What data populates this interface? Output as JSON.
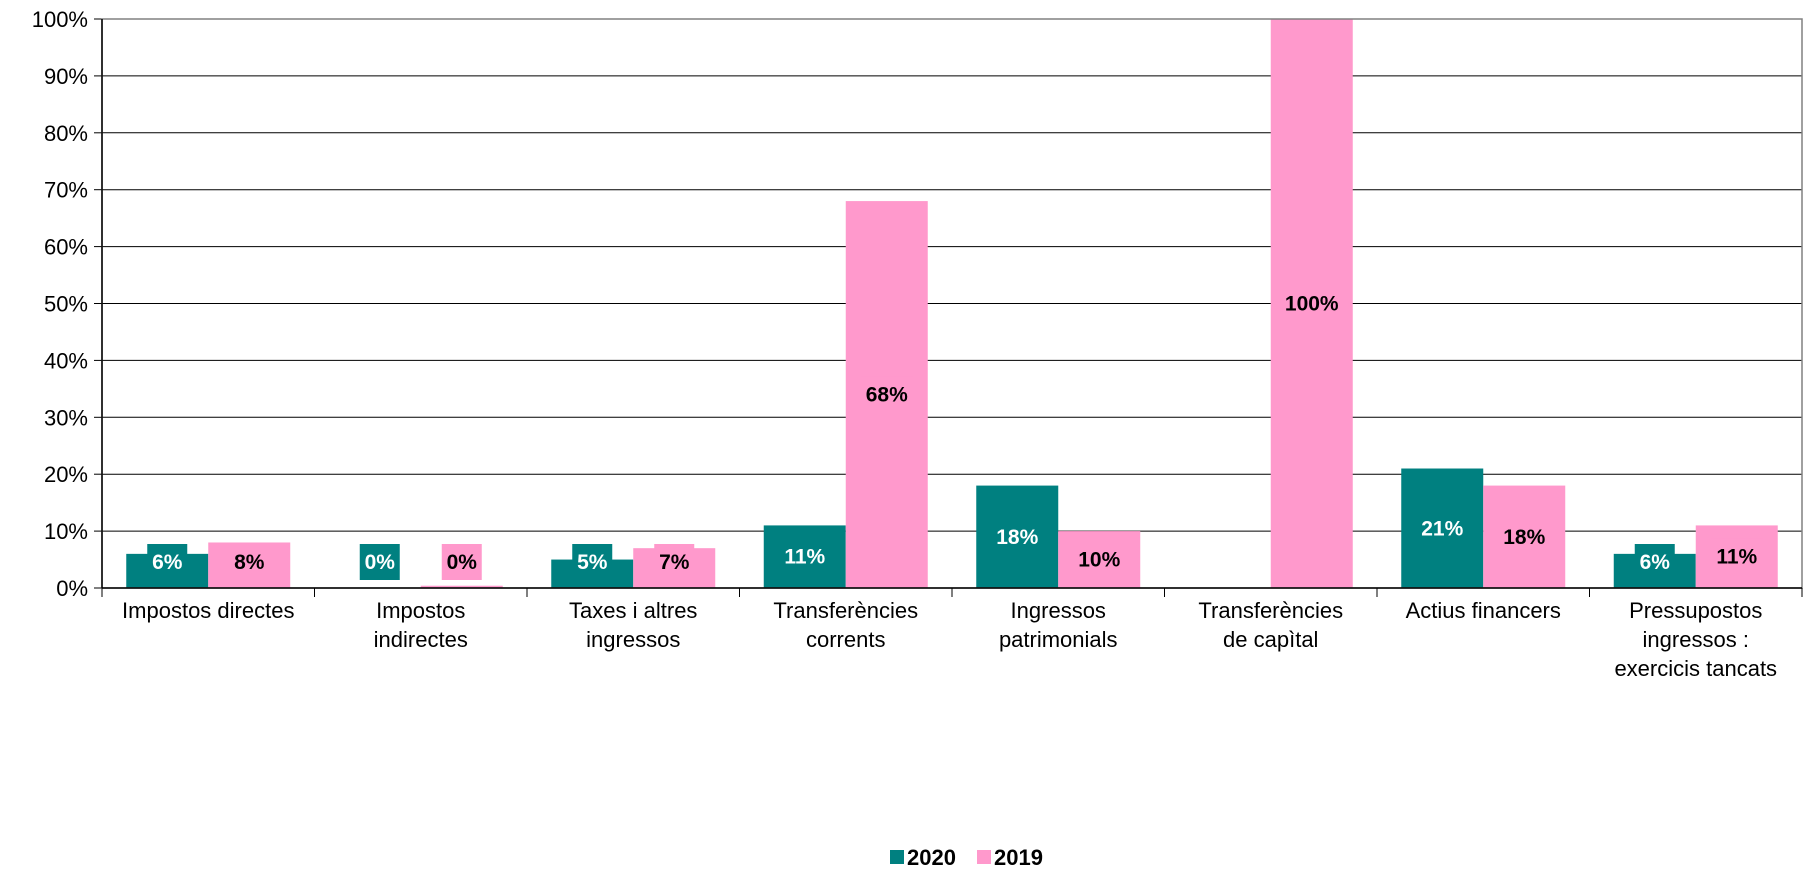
{
  "chart_data": {
    "type": "bar",
    "categories": [
      [
        "Impostos directes"
      ],
      [
        "Impostos",
        "indirectes"
      ],
      [
        "Taxes i altres",
        "ingressos"
      ],
      [
        "Transferències",
        "corrents"
      ],
      [
        "Ingressos",
        "patrimonials"
      ],
      [
        "Transferències",
        "de capìtal"
      ],
      [
        "Actius financers"
      ],
      [
        "Pressupostos",
        "ingressos :",
        "exercicis tancats"
      ]
    ],
    "series": [
      {
        "name": "2020",
        "color": "#008080",
        "values": [
          6,
          0,
          5,
          11,
          18,
          0,
          21,
          6
        ],
        "labels": [
          "6%",
          "0%",
          "5%",
          "11%",
          "18%",
          "",
          "21%",
          "6%"
        ],
        "label_color": "#ffffff"
      },
      {
        "name": "2019",
        "color": "#ff99cc",
        "values": [
          8,
          0.4,
          7,
          68,
          10,
          100,
          18,
          11
        ],
        "labels": [
          "8%",
          "0%",
          "7%",
          "68%",
          "10%",
          "100%",
          "18%",
          "11%"
        ],
        "label_color": "#000000"
      }
    ],
    "ylim": [
      0,
      100
    ],
    "yticks": [
      0,
      10,
      20,
      30,
      40,
      50,
      60,
      70,
      80,
      90,
      100
    ],
    "ytick_labels": [
      "0%",
      "10%",
      "20%",
      "30%",
      "40%",
      "50%",
      "60%",
      "70%",
      "80%",
      "90%",
      "100%"
    ],
    "grid": true,
    "legend_position": "bottom-center",
    "title": "",
    "xlabel": "",
    "ylabel": ""
  }
}
